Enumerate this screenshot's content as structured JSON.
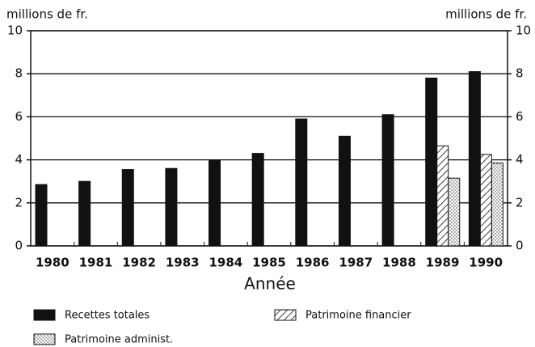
{
  "chart_data": {
    "type": "bar",
    "y_label": "millions de fr.",
    "y2_label": "millions de fr.",
    "x_label": "Année",
    "categories": [
      "1980",
      "1981",
      "1982",
      "1983",
      "1984",
      "1985",
      "1986",
      "1987",
      "1988",
      "1989",
      "1990"
    ],
    "series": [
      {
        "name": "Recettes totales",
        "color": "#111111",
        "pattern": "solid",
        "values": [
          2.85,
          3.0,
          3.55,
          3.6,
          4.0,
          4.3,
          5.9,
          5.1,
          6.1,
          7.8,
          8.1
        ]
      },
      {
        "name": "Patrimoine financier",
        "color": "#111111",
        "pattern": "hatch",
        "values": [
          null,
          null,
          null,
          null,
          null,
          null,
          null,
          null,
          null,
          4.65,
          4.25
        ]
      },
      {
        "name": "Patrimoine administ.",
        "color": "#111111",
        "pattern": "dots",
        "values": [
          null,
          null,
          null,
          null,
          null,
          null,
          null,
          null,
          null,
          3.15,
          3.85
        ]
      }
    ],
    "ylim": [
      0,
      10
    ],
    "yticks": [
      0,
      2,
      4,
      6,
      8,
      10
    ],
    "y2lim": [
      0,
      10
    ],
    "y2ticks": [
      0,
      2,
      4,
      6,
      8,
      10
    ],
    "grid": true
  }
}
